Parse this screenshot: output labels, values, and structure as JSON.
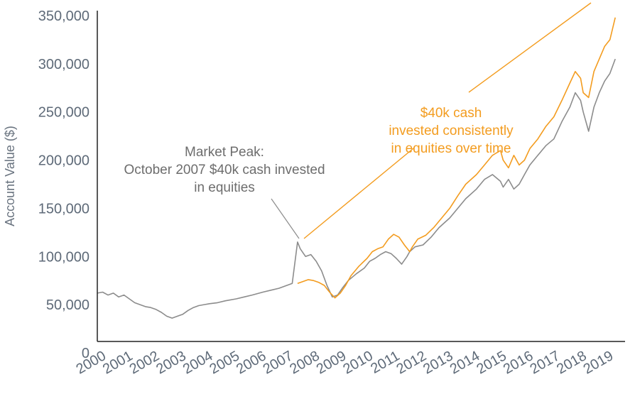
{
  "chart_data": {
    "type": "line",
    "ylabel": "Account Value ($)",
    "xlabel": "",
    "xlim": [
      1999.8,
      2019.3
    ],
    "ylim": [
      0,
      350000
    ],
    "y_ticks": [
      0,
      50000,
      100000,
      150000,
      200000,
      250000,
      300000,
      350000
    ],
    "y_tick_labels": [
      "0",
      "50,000",
      "100,000",
      "150,000",
      "200,000",
      "250,000",
      "300,000",
      "350,000"
    ],
    "x_ticks": [
      2000,
      2001,
      2002,
      2003,
      2004,
      2005,
      2006,
      2007,
      2008,
      2009,
      2010,
      2011,
      2012,
      2013,
      2014,
      2015,
      2016,
      2017,
      2018,
      2019
    ],
    "x_tick_labels": [
      "2000",
      "2001",
      "2002",
      "2003",
      "2004",
      "2005",
      "2006",
      "2007",
      "2008",
      "2009",
      "2010",
      "2011",
      "2012",
      "2013",
      "2014",
      "2015",
      "2016",
      "2017",
      "2018",
      "2019"
    ],
    "grid": false,
    "colors": {
      "lump_sum": "#8c8c8c",
      "consistent": "#f39c1f",
      "axis": "#222222"
    },
    "series": [
      {
        "key": "lump_sum",
        "x": [
          1999.8,
          2000.0,
          2000.2,
          2000.4,
          2000.6,
          2000.8,
          2001.0,
          2001.2,
          2001.4,
          2001.6,
          2001.8,
          2002.0,
          2002.2,
          2002.4,
          2002.6,
          2002.8,
          2003.0,
          2003.2,
          2003.4,
          2003.6,
          2003.8,
          2004.0,
          2004.3,
          2004.6,
          2005.0,
          2005.3,
          2005.6,
          2006.0,
          2006.3,
          2006.6,
          2006.9,
          2007.1,
          2007.3,
          2007.4,
          2007.6,
          2007.8,
          2008.0,
          2008.2,
          2008.4,
          2008.6,
          2008.8,
          2009.0,
          2009.2,
          2009.5,
          2009.8,
          2010.0,
          2010.2,
          2010.4,
          2010.6,
          2010.8,
          2011.0,
          2011.2,
          2011.4,
          2011.5,
          2011.7,
          2012.0,
          2012.3,
          2012.6,
          2013.0,
          2013.3,
          2013.6,
          2014.0,
          2014.3,
          2014.6,
          2014.9,
          2015.0,
          2015.2,
          2015.4,
          2015.6,
          2015.8,
          2016.0,
          2016.3,
          2016.6,
          2016.9,
          2017.2,
          2017.5,
          2017.7,
          2017.9,
          2018.0,
          2018.2,
          2018.4,
          2018.6,
          2018.8,
          2019.0,
          2019.2
        ],
        "y": [
          62000,
          63000,
          60000,
          62000,
          58000,
          60000,
          56000,
          52000,
          50000,
          48000,
          47000,
          45000,
          42000,
          38000,
          36000,
          38000,
          40000,
          44000,
          47000,
          49000,
          50000,
          51000,
          52000,
          54000,
          56000,
          58000,
          60000,
          63000,
          65000,
          67000,
          70000,
          72000,
          115000,
          108000,
          100000,
          102000,
          95000,
          85000,
          70000,
          58000,
          60000,
          68000,
          75000,
          82000,
          88000,
          95000,
          98000,
          102000,
          105000,
          103000,
          98000,
          92000,
          100000,
          105000,
          110000,
          112000,
          120000,
          130000,
          140000,
          150000,
          160000,
          170000,
          180000,
          185000,
          178000,
          172000,
          180000,
          170000,
          175000,
          185000,
          195000,
          205000,
          215000,
          222000,
          240000,
          255000,
          270000,
          262000,
          250000,
          230000,
          255000,
          270000,
          282000,
          290000,
          305000
        ]
      },
      {
        "key": "consistent",
        "x": [
          2007.3,
          2007.5,
          2007.7,
          2007.9,
          2008.1,
          2008.3,
          2008.5,
          2008.7,
          2008.9,
          2009.1,
          2009.3,
          2009.6,
          2009.9,
          2010.1,
          2010.3,
          2010.5,
          2010.7,
          2010.9,
          2011.1,
          2011.3,
          2011.5,
          2011.6,
          2011.8,
          2012.1,
          2012.4,
          2012.7,
          2013.0,
          2013.3,
          2013.6,
          2014.0,
          2014.3,
          2014.6,
          2014.9,
          2015.0,
          2015.2,
          2015.4,
          2015.6,
          2015.8,
          2016.0,
          2016.3,
          2016.6,
          2016.9,
          2017.2,
          2017.5,
          2017.7,
          2017.9,
          2018.0,
          2018.2,
          2018.4,
          2018.6,
          2018.8,
          2019.0,
          2019.2
        ],
        "y": [
          72000,
          74000,
          76000,
          75000,
          73000,
          70000,
          63000,
          57000,
          62000,
          70000,
          80000,
          90000,
          98000,
          105000,
          108000,
          110000,
          118000,
          123000,
          120000,
          112000,
          105000,
          110000,
          118000,
          122000,
          130000,
          140000,
          150000,
          163000,
          175000,
          185000,
          195000,
          205000,
          210000,
          200000,
          192000,
          205000,
          195000,
          200000,
          212000,
          222000,
          235000,
          245000,
          262000,
          280000,
          292000,
          285000,
          270000,
          265000,
          292000,
          305000,
          318000,
          325000,
          348000
        ]
      }
    ],
    "annotations": [
      {
        "key": "peak",
        "lines": [
          "Market Peak:",
          "October 2007 $40k cash invested",
          "in equities"
        ]
      },
      {
        "key": "consistent",
        "lines": [
          "$40k cash",
          "invested consistently",
          "in equities over time"
        ]
      }
    ]
  }
}
